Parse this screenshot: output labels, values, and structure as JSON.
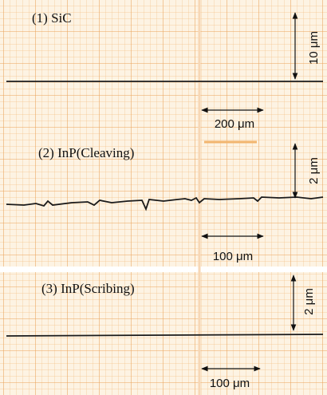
{
  "panels": [
    {
      "label": "(1) SiC",
      "vertical_scale": "10 μm",
      "horizontal_scale": "200 μm"
    },
    {
      "label": "(2) InP(Cleaving)",
      "vertical_scale": "2 μm",
      "horizontal_scale": "100 μm"
    },
    {
      "label": "(3) InP(Scribing)",
      "vertical_scale": "2 μm",
      "horizontal_scale": "100 μm"
    }
  ]
}
